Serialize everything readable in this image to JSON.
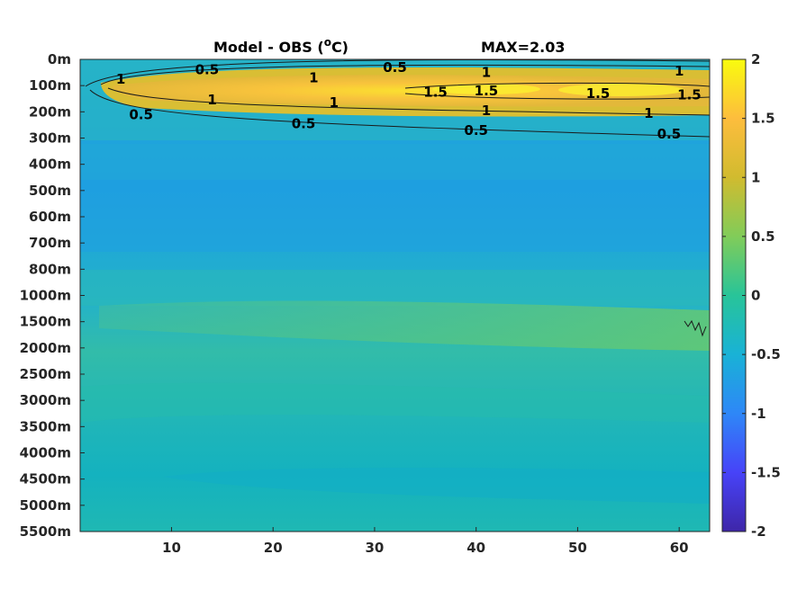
{
  "chart_data": {
    "type": "heatmap",
    "title": "Model - OBS (",
    "title_superscript": "o",
    "title_suffix": "C)",
    "annotation": "MAX=2.03",
    "xlabel": "",
    "ylabel": "",
    "xlim": [
      1,
      63
    ],
    "x_ticks": [
      10,
      20,
      30,
      40,
      50,
      60
    ],
    "y_tick_labels": [
      "0m",
      "100m",
      "200m",
      "300m",
      "400m",
      "500m",
      "600m",
      "700m",
      "800m",
      "1000m",
      "1500m",
      "2000m",
      "2500m",
      "3000m",
      "3500m",
      "4000m",
      "4500m",
      "5000m",
      "5500m"
    ],
    "colorbar": {
      "range": [
        -2,
        2
      ],
      "ticks": [
        2,
        1.5,
        1,
        0.5,
        0,
        -0.5,
        -1,
        -1.5,
        -2
      ],
      "colormap": "parula",
      "colors": [
        "#3e26a8",
        "#4743f8",
        "#2e87f7",
        "#19b2d6",
        "#28c499",
        "#81cc59",
        "#d1bb2f",
        "#fdbd3d",
        "#f9fb0e"
      ]
    },
    "contour_levels": [
      0.5,
      1,
      1.5
    ],
    "contour_labels": [
      {
        "text": "1",
        "x": 5,
        "depth_index": 0.75
      },
      {
        "text": "0.5",
        "x": 13.5,
        "depth_index": 0.4
      },
      {
        "text": "1",
        "x": 24,
        "depth_index": 0.7
      },
      {
        "text": "0.5",
        "x": 32,
        "depth_index": 0.3
      },
      {
        "text": "1",
        "x": 41,
        "depth_index": 0.5
      },
      {
        "text": "1",
        "x": 60,
        "depth_index": 0.45
      },
      {
        "text": "1.5",
        "x": 36,
        "depth_index": 1.25
      },
      {
        "text": "1.5",
        "x": 41,
        "depth_index": 1.2
      },
      {
        "text": "1.5",
        "x": 52,
        "depth_index": 1.3
      },
      {
        "text": "1.5",
        "x": 61,
        "depth_index": 1.35
      },
      {
        "text": "1",
        "x": 14,
        "depth_index": 1.55
      },
      {
        "text": "1",
        "x": 26,
        "depth_index": 1.65
      },
      {
        "text": "1",
        "x": 41,
        "depth_index": 1.95
      },
      {
        "text": "1",
        "x": 57,
        "depth_index": 2.05
      },
      {
        "text": "0.5",
        "x": 7,
        "depth_index": 2.1
      },
      {
        "text": "0.5",
        "x": 23,
        "depth_index": 2.45
      },
      {
        "text": "0.5",
        "x": 40,
        "depth_index": 2.7
      },
      {
        "text": "0.5",
        "x": 59,
        "depth_index": 2.85
      }
    ],
    "grid": false
  }
}
